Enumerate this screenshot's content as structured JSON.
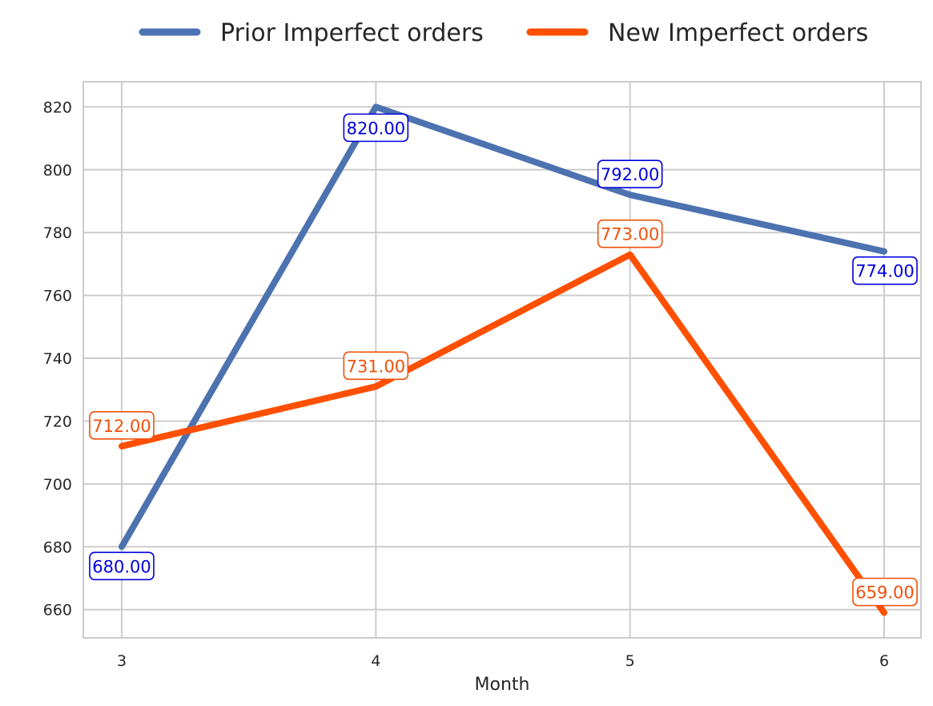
{
  "chart_data": {
    "type": "line",
    "x": [
      3,
      4,
      5,
      6
    ],
    "xticks": [
      "3",
      "4",
      "5",
      "6"
    ],
    "xlabel": "Month",
    "ylabel": "",
    "ylim": [
      651,
      828
    ],
    "yticks": [
      "660",
      "680",
      "700",
      "720",
      "740",
      "760",
      "780",
      "800",
      "820"
    ],
    "grid": true,
    "legend_position": "top-center",
    "series": [
      {
        "name": "Prior Imperfect orders",
        "color": "#4c72b0",
        "label_color": "#0000dd",
        "values": [
          680,
          820,
          792,
          774
        ],
        "labels": [
          "680.00",
          "820.00",
          "792.00",
          "774.00"
        ]
      },
      {
        "name": "New Imperfect orders",
        "color": "#ff4f00",
        "label_color": "#f0500a",
        "values": [
          712,
          731,
          773,
          659
        ],
        "labels": [
          "712.00",
          "731.00",
          "773.00",
          "659.00"
        ]
      }
    ]
  }
}
